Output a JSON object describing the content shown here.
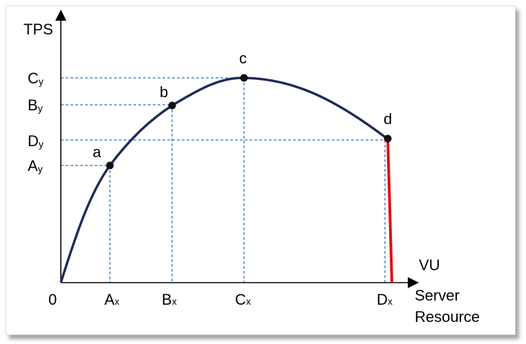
{
  "axes": {
    "y_label": "TPS",
    "x_label_top": "VU",
    "x_label_line1": "Server",
    "x_label_line2": "Resource",
    "origin": "0"
  },
  "y_ticks": [
    {
      "main": "C",
      "sub": "y"
    },
    {
      "main": "B",
      "sub": "y"
    },
    {
      "main": "D",
      "sub": "y"
    },
    {
      "main": "A",
      "sub": "y"
    }
  ],
  "x_ticks": [
    {
      "main": "A",
      "sub": "x"
    },
    {
      "main": "B",
      "sub": "x"
    },
    {
      "main": "C",
      "sub": "x"
    },
    {
      "main": "D",
      "sub": "x"
    }
  ],
  "points": [
    {
      "label": "a"
    },
    {
      "label": "b"
    },
    {
      "label": "c"
    },
    {
      "label": "d"
    }
  ],
  "colors": {
    "curve": "#1f2a5a",
    "guide": "#2e75b6",
    "drop": "#e01010",
    "axis": "#000000",
    "point": "#111111"
  }
}
